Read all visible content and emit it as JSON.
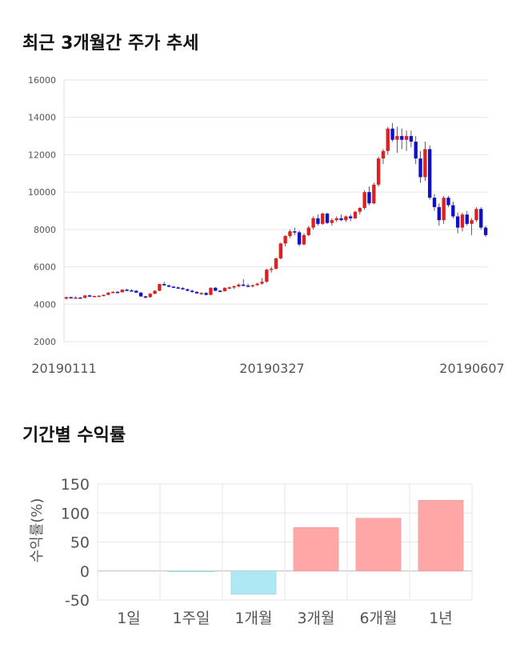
{
  "sections": {
    "price_title": "최근 3개월간 주가 추세",
    "returns_title": "기간별 수익률"
  },
  "chart_data": [
    {
      "type": "candlestick",
      "title": "최근 3개월간 주가 추세",
      "ylim": [
        2000,
        16000
      ],
      "y_ticks": [
        "16000",
        "14000",
        "12000",
        "10000",
        "8000",
        "6000",
        "4000",
        "2000"
      ],
      "x_tick_labels": [
        "20190111",
        "20190327",
        "20190607"
      ],
      "grid": true,
      "colors": {
        "up": "#e02020",
        "down": "#1010cc",
        "grid": "#e6e6e6"
      },
      "ohlc": [
        [
          4300,
          4400,
          4250,
          4380
        ],
        [
          4380,
          4400,
          4300,
          4330
        ],
        [
          4330,
          4420,
          4280,
          4360
        ],
        [
          4360,
          4380,
          4300,
          4340
        ],
        [
          4340,
          4500,
          4300,
          4470
        ],
        [
          4470,
          4520,
          4380,
          4420
        ],
        [
          4420,
          4460,
          4380,
          4440
        ],
        [
          4440,
          4480,
          4400,
          4450
        ],
        [
          4450,
          4520,
          4420,
          4500
        ],
        [
          4500,
          4650,
          4480,
          4620
        ],
        [
          4620,
          4700,
          4580,
          4660
        ],
        [
          4660,
          4720,
          4600,
          4640
        ],
        [
          4640,
          4800,
          4620,
          4780
        ],
        [
          4780,
          4820,
          4700,
          4740
        ],
        [
          4740,
          4800,
          4680,
          4720
        ],
        [
          4720,
          4760,
          4600,
          4620
        ],
        [
          4620,
          4650,
          4380,
          4420
        ],
        [
          4420,
          4450,
          4300,
          4380
        ],
        [
          4380,
          4600,
          4350,
          4560
        ],
        [
          4560,
          4750,
          4540,
          4720
        ],
        [
          4720,
          5100,
          4700,
          5080
        ],
        [
          5080,
          5200,
          4980,
          5010
        ],
        [
          5010,
          5050,
          4900,
          4940
        ],
        [
          4940,
          4980,
          4880,
          4900
        ],
        [
          4900,
          4950,
          4820,
          4860
        ],
        [
          4860,
          4920,
          4780,
          4800
        ],
        [
          4800,
          4840,
          4700,
          4720
        ],
        [
          4720,
          4780,
          4620,
          4660
        ],
        [
          4660,
          4700,
          4560,
          4580
        ],
        [
          4580,
          4640,
          4500,
          4600
        ],
        [
          4600,
          4650,
          4480,
          4500
        ],
        [
          4500,
          4900,
          4480,
          4880
        ],
        [
          4880,
          4920,
          4700,
          4720
        ],
        [
          4720,
          4760,
          4660,
          4700
        ],
        [
          4700,
          4900,
          4680,
          4880
        ],
        [
          4880,
          4950,
          4800,
          4900
        ],
        [
          4900,
          5000,
          4820,
          4960
        ],
        [
          4960,
          5100,
          4900,
          5050
        ],
        [
          5050,
          5350,
          4950,
          5000
        ],
        [
          5000,
          5100,
          4900,
          4980
        ],
        [
          4980,
          5050,
          4900,
          5020
        ],
        [
          5020,
          5150,
          4980,
          5100
        ],
        [
          5100,
          5400,
          5050,
          5200
        ],
        [
          5200,
          5900,
          5150,
          5850
        ],
        [
          5850,
          6000,
          5700,
          5900
        ],
        [
          5900,
          6500,
          5850,
          6450
        ],
        [
          6450,
          7300,
          6400,
          7250
        ],
        [
          7250,
          7700,
          7100,
          7650
        ],
        [
          7650,
          8000,
          7550,
          7900
        ],
        [
          7900,
          8100,
          7700,
          7850
        ],
        [
          7850,
          7950,
          7100,
          7200
        ],
        [
          7200,
          7800,
          7150,
          7700
        ],
        [
          7700,
          8200,
          7650,
          8100
        ],
        [
          8100,
          8700,
          8000,
          8600
        ],
        [
          8600,
          8800,
          8200,
          8300
        ],
        [
          8300,
          8900,
          8250,
          8850
        ],
        [
          8850,
          8900,
          8300,
          8350
        ],
        [
          8350,
          8600,
          8200,
          8500
        ],
        [
          8500,
          8700,
          8400,
          8600
        ],
        [
          8600,
          8800,
          8450,
          8500
        ],
        [
          8500,
          8750,
          8400,
          8700
        ],
        [
          8700,
          8800,
          8450,
          8600
        ],
        [
          8600,
          9000,
          8550,
          8950
        ],
        [
          8950,
          9200,
          8800,
          9150
        ],
        [
          9150,
          10100,
          9050,
          10000
        ],
        [
          10000,
          10300,
          9300,
          9400
        ],
        [
          9400,
          10500,
          9350,
          10400
        ],
        [
          10400,
          11900,
          10300,
          11800
        ],
        [
          11800,
          12300,
          11500,
          12200
        ],
        [
          12200,
          13500,
          12000,
          13400
        ],
        [
          13400,
          13700,
          12700,
          12800
        ],
        [
          12800,
          13500,
          12100,
          13000
        ],
        [
          13000,
          13400,
          12300,
          12800
        ],
        [
          12800,
          13300,
          12200,
          13000
        ],
        [
          13000,
          13300,
          12400,
          12700
        ],
        [
          12700,
          13000,
          11500,
          11800
        ],
        [
          11800,
          12200,
          10500,
          10800
        ],
        [
          10800,
          12700,
          10600,
          12300
        ],
        [
          12300,
          12500,
          9600,
          9700
        ],
        [
          9700,
          9900,
          9000,
          9200
        ],
        [
          9200,
          9400,
          8200,
          8500
        ],
        [
          8500,
          9800,
          8300,
          9700
        ],
        [
          9700,
          9800,
          9200,
          9300
        ],
        [
          9300,
          9500,
          8600,
          8700
        ],
        [
          8700,
          8900,
          7800,
          8100
        ],
        [
          8100,
          8900,
          7900,
          8800
        ],
        [
          8800,
          9000,
          8200,
          8300
        ],
        [
          8300,
          8600,
          7700,
          8500
        ],
        [
          8500,
          9200,
          8400,
          9100
        ],
        [
          9100,
          9200,
          8000,
          8100
        ],
        [
          8100,
          8200,
          7600,
          7700
        ]
      ]
    },
    {
      "type": "bar",
      "title": "기간별 수익률",
      "ylabel": "수익률(%)",
      "ylim": [
        -50,
        150
      ],
      "y_ticks": [
        "150",
        "100",
        "50",
        "0",
        "-50"
      ],
      "categories": [
        "1일",
        "1주일",
        "1개월",
        "3개월",
        "6개월",
        "1년"
      ],
      "values": [
        0,
        -1,
        -40,
        75,
        91,
        122
      ],
      "grid": true,
      "colors": {
        "positive": "#ffa6a6",
        "negative": "#aee8f5",
        "grid": "#e6e6e6"
      }
    }
  ]
}
